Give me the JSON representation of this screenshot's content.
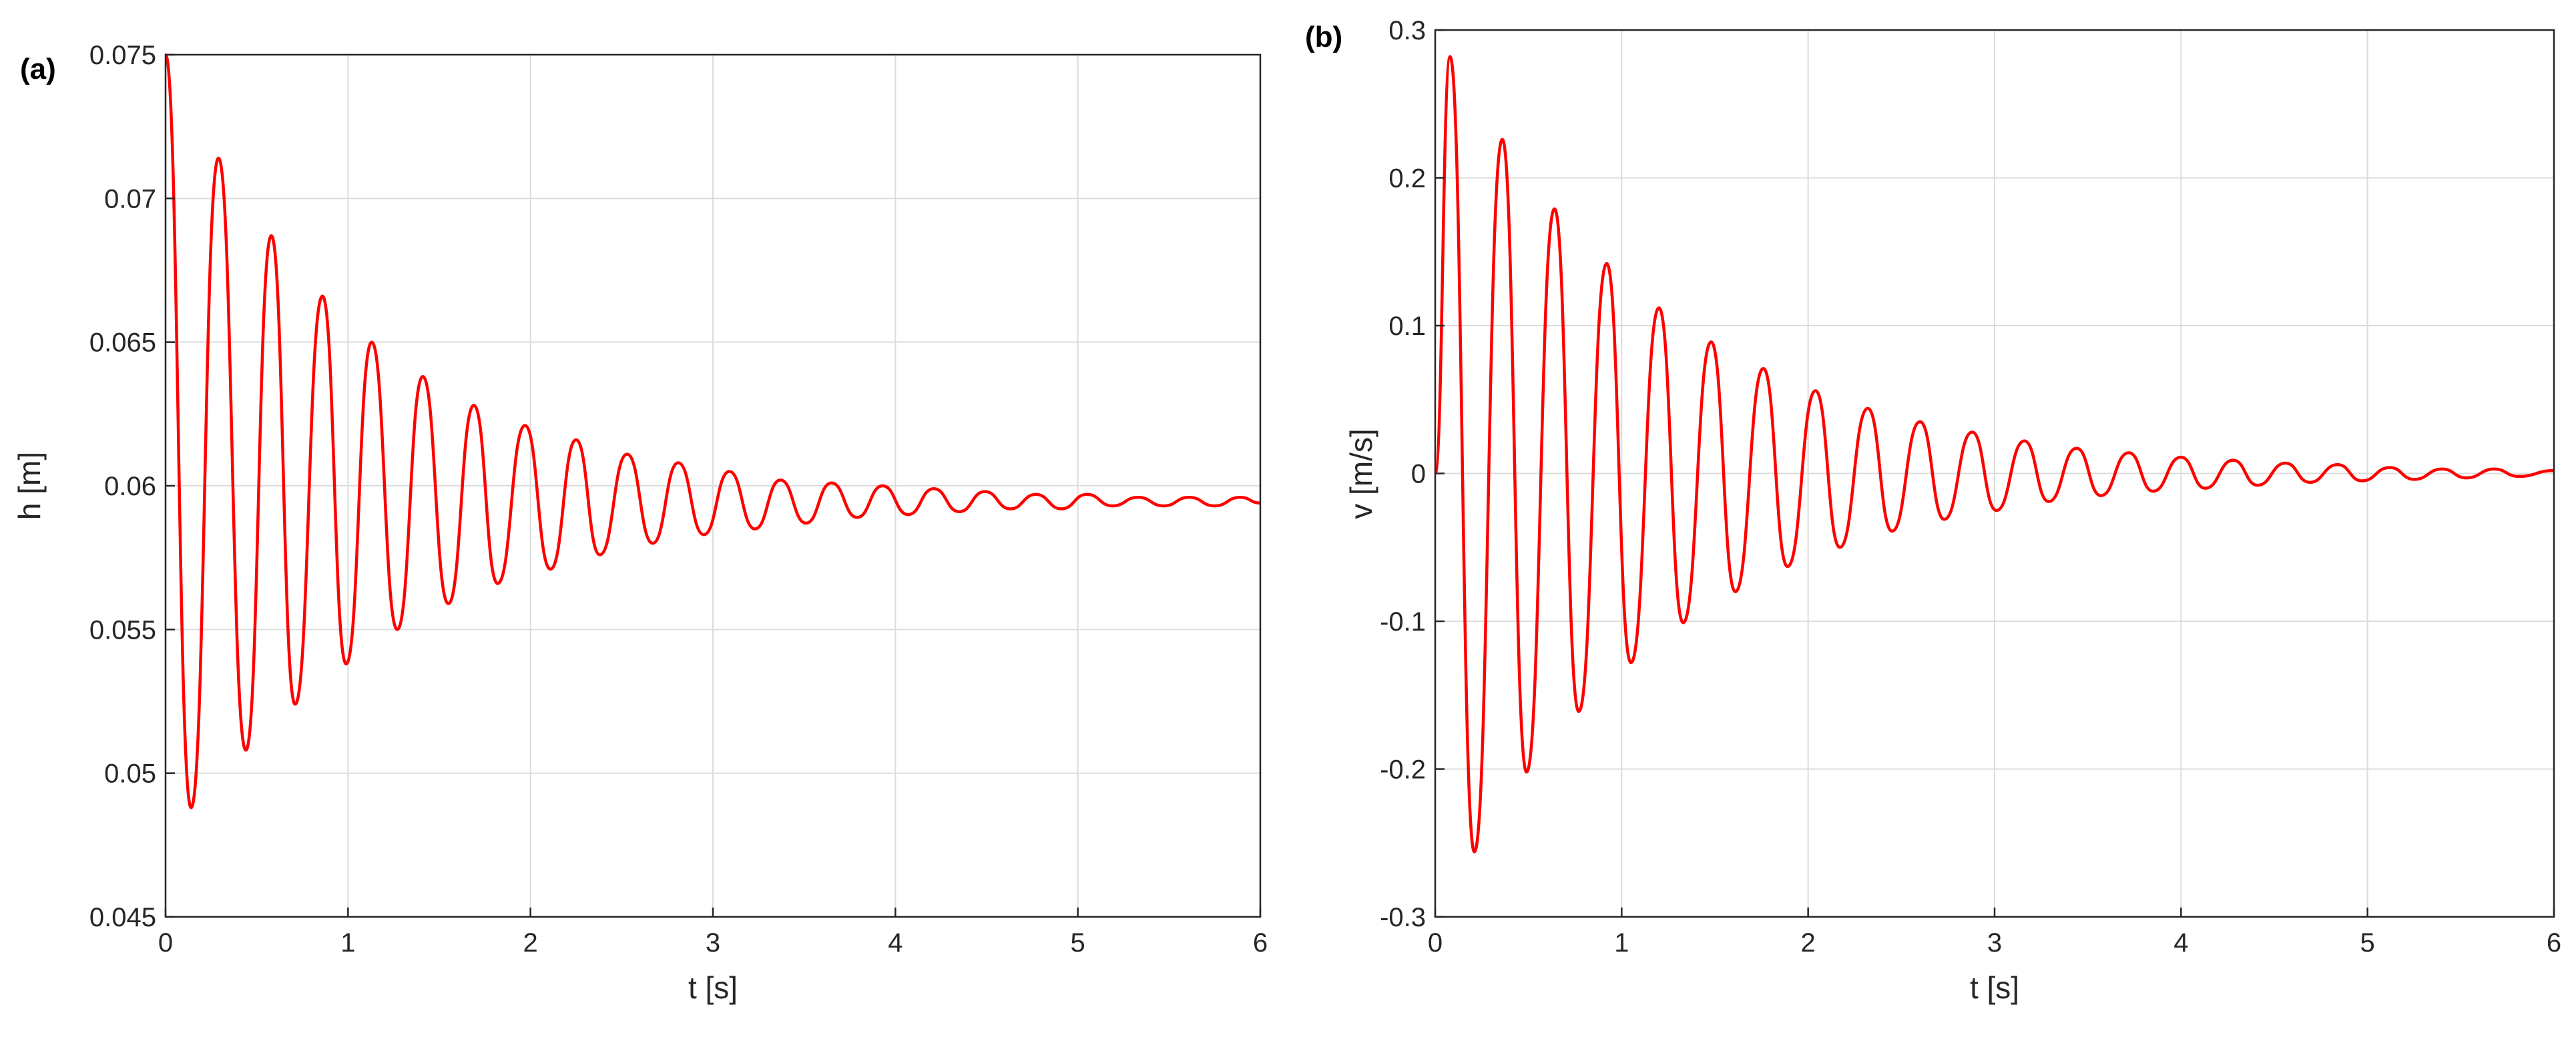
{
  "chart_data": [
    {
      "type": "line",
      "panel_label": "(a)",
      "xlabel": "t [s]",
      "ylabel": "h [m]",
      "xlim": [
        0,
        6
      ],
      "ylim": [
        0.045,
        0.075
      ],
      "xticks": [
        0,
        1,
        2,
        3,
        4,
        5,
        6
      ],
      "yticks": [
        0.045,
        0.05,
        0.055,
        0.06,
        0.065,
        0.07,
        0.075
      ],
      "ytick_labels": [
        "0.045",
        "0.05",
        "0.055",
        "0.06",
        "0.065",
        "0.07",
        "0.075"
      ],
      "grid": true,
      "line_color": "#ff0000",
      "series": [
        {
          "points": [
            [
              0.0,
              0.075
            ],
            [
              0.14,
              0.0488
            ],
            [
              0.29,
              0.0714
            ],
            [
              0.44,
              0.0508
            ],
            [
              0.58,
              0.0687
            ],
            [
              0.71,
              0.0524
            ],
            [
              0.86,
              0.0666
            ],
            [
              0.99,
              0.0538
            ],
            [
              1.13,
              0.065
            ],
            [
              1.27,
              0.055
            ],
            [
              1.41,
              0.0638
            ],
            [
              1.55,
              0.0559
            ],
            [
              1.69,
              0.0628
            ],
            [
              1.82,
              0.0566
            ],
            [
              1.97,
              0.0621
            ],
            [
              2.11,
              0.0571
            ],
            [
              2.25,
              0.0616
            ],
            [
              2.38,
              0.0576
            ],
            [
              2.53,
              0.0611
            ],
            [
              2.67,
              0.058
            ],
            [
              2.81,
              0.0608
            ],
            [
              2.95,
              0.0583
            ],
            [
              3.09,
              0.0605
            ],
            [
              3.23,
              0.0585
            ],
            [
              3.37,
              0.0602
            ],
            [
              3.51,
              0.0587
            ],
            [
              3.65,
              0.0601
            ],
            [
              3.79,
              0.0589
            ],
            [
              3.93,
              0.06
            ],
            [
              4.07,
              0.059
            ],
            [
              4.21,
              0.0599
            ],
            [
              4.35,
              0.0591
            ],
            [
              4.49,
              0.0598
            ],
            [
              4.63,
              0.0592
            ],
            [
              4.77,
              0.0597
            ],
            [
              4.91,
              0.0592
            ],
            [
              5.05,
              0.0597
            ],
            [
              5.19,
              0.0593
            ],
            [
              5.33,
              0.0596
            ],
            [
              5.47,
              0.0593
            ],
            [
              5.61,
              0.0596
            ],
            [
              5.75,
              0.0593
            ],
            [
              5.89,
              0.0596
            ],
            [
              6.0,
              0.0594
            ]
          ]
        }
      ]
    },
    {
      "type": "line",
      "panel_label": "(b)",
      "xlabel": "t [s]",
      "ylabel": "v [m/s]",
      "xlim": [
        0,
        6
      ],
      "ylim": [
        -0.3,
        0.3
      ],
      "xticks": [
        0,
        1,
        2,
        3,
        4,
        5,
        6
      ],
      "yticks": [
        -0.3,
        -0.2,
        -0.1,
        0,
        0.1,
        0.2,
        0.3
      ],
      "ytick_labels": [
        "-0.3",
        "-0.2",
        "-0.1",
        "0",
        "0.1",
        "0.2",
        "0.3"
      ],
      "grid": true,
      "line_color": "#ff0000",
      "series": [
        {
          "points": [
            [
              0.0,
              0.0
            ],
            [
              0.08,
              0.282
            ],
            [
              0.21,
              -0.256
            ],
            [
              0.36,
              0.226
            ],
            [
              0.49,
              -0.202
            ],
            [
              0.64,
              0.179
            ],
            [
              0.77,
              -0.161
            ],
            [
              0.92,
              0.142
            ],
            [
              1.05,
              -0.128
            ],
            [
              1.2,
              0.112
            ],
            [
              1.33,
              -0.101
            ],
            [
              1.48,
              0.089
            ],
            [
              1.61,
              -0.08
            ],
            [
              1.76,
              0.071
            ],
            [
              1.89,
              -0.063
            ],
            [
              2.04,
              0.056
            ],
            [
              2.17,
              -0.05
            ],
            [
              2.32,
              0.044
            ],
            [
              2.45,
              -0.039
            ],
            [
              2.6,
              0.035
            ],
            [
              2.73,
              -0.031
            ],
            [
              2.88,
              0.028
            ],
            [
              3.01,
              -0.025
            ],
            [
              3.16,
              0.022
            ],
            [
              3.29,
              -0.019
            ],
            [
              3.44,
              0.017
            ],
            [
              3.57,
              -0.015
            ],
            [
              3.72,
              0.014
            ],
            [
              3.85,
              -0.012
            ],
            [
              4.0,
              0.011
            ],
            [
              4.13,
              -0.01
            ],
            [
              4.28,
              0.009
            ],
            [
              4.41,
              -0.008
            ],
            [
              4.56,
              0.007
            ],
            [
              4.69,
              -0.006
            ],
            [
              4.84,
              0.006
            ],
            [
              4.97,
              -0.005
            ],
            [
              5.12,
              0.004
            ],
            [
              5.25,
              -0.004
            ],
            [
              5.4,
              0.003
            ],
            [
              5.53,
              -0.003
            ],
            [
              5.68,
              0.003
            ],
            [
              5.81,
              -0.002
            ],
            [
              6.0,
              0.002
            ]
          ]
        }
      ]
    }
  ]
}
